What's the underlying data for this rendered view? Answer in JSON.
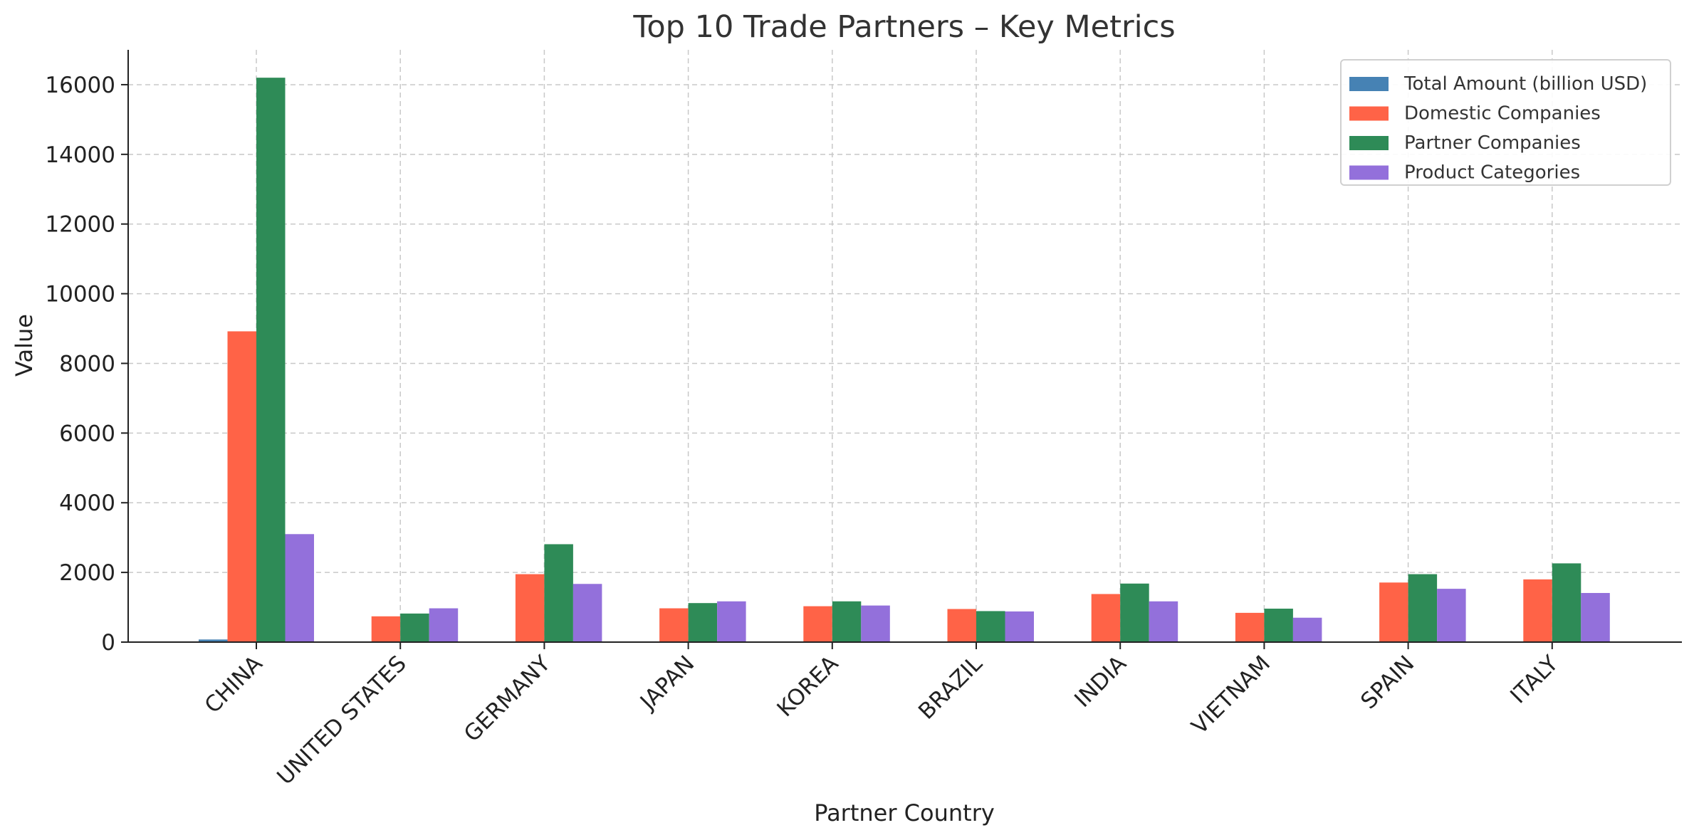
{
  "chart_data": {
    "type": "bar",
    "title": "Top 10 Trade Partners – Key Metrics",
    "xlabel": "Partner Country",
    "ylabel": "Value",
    "ylim": [
      0,
      17000
    ],
    "yticks": [
      0,
      2000,
      4000,
      6000,
      8000,
      10000,
      12000,
      14000,
      16000
    ],
    "grid": true,
    "legend_position": "top-right",
    "categories": [
      "CHINA",
      "UNITED STATES",
      "GERMANY",
      "JAPAN",
      "KOREA",
      "BRAZIL",
      "INDIA",
      "VIETNAM",
      "SPAIN",
      "ITALY"
    ],
    "series": [
      {
        "name": "Total Amount (billion USD)",
        "color": "#4682b4",
        "values": [
          75,
          20,
          12,
          8,
          7,
          3,
          4,
          6,
          2,
          2
        ]
      },
      {
        "name": "Domestic Companies",
        "color": "#ff6347",
        "values": [
          8920,
          740,
          1950,
          970,
          1030,
          950,
          1380,
          840,
          1710,
          1800
        ]
      },
      {
        "name": "Partner Companies",
        "color": "#2e8b57",
        "values": [
          16200,
          820,
          2810,
          1120,
          1170,
          890,
          1680,
          960,
          1950,
          2260
        ]
      },
      {
        "name": "Product Categories",
        "color": "#9370db",
        "values": [
          3100,
          970,
          1670,
          1170,
          1050,
          880,
          1170,
          700,
          1530,
          1410
        ]
      }
    ]
  }
}
